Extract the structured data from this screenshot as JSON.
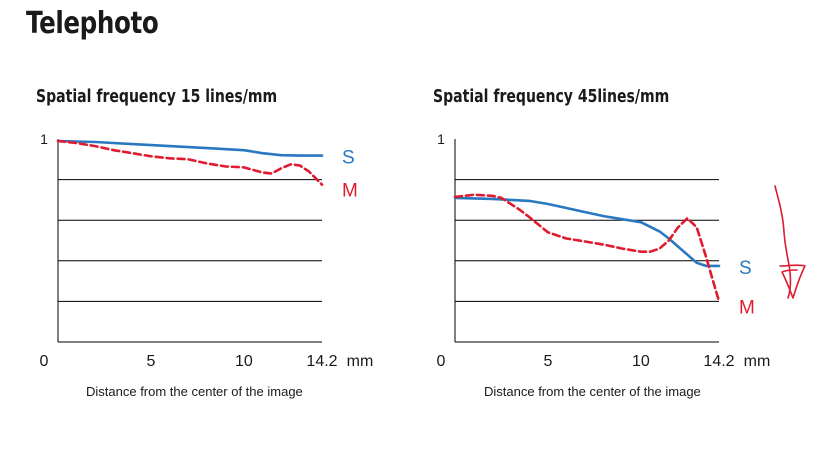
{
  "page_title": "Telephoto",
  "colors": {
    "S": "#2a78c0",
    "M": "#e01b2f",
    "annotation": "#e01b2f",
    "grid": "#000000",
    "text": "#1a1a1a"
  },
  "chart_data": [
    {
      "type": "line",
      "title": "Spatial frequency 15 lines/mm",
      "xlabel": "Distance from the center of the image",
      "x_unit": "mm",
      "xlim": [
        0,
        14.2
      ],
      "ylim": [
        0,
        1
      ],
      "x_ticks": [
        "0",
        "5",
        "10",
        "14.2"
      ],
      "y_ticks": [
        "1"
      ],
      "gridlines_y": [
        0.2,
        0.4,
        0.6,
        0.8
      ],
      "series": [
        {
          "name": "S",
          "style": "solid",
          "x": [
            0,
            2,
            4,
            6,
            8,
            10,
            11,
            12,
            13,
            14.2
          ],
          "y": [
            0.99,
            0.985,
            0.975,
            0.965,
            0.955,
            0.945,
            0.93,
            0.92,
            0.918,
            0.918
          ]
        },
        {
          "name": "M",
          "style": "dashed",
          "x": [
            0,
            1,
            2,
            3,
            4,
            5,
            6,
            7,
            8,
            9,
            10,
            11,
            11.5,
            12,
            12.5,
            13,
            13.5,
            14.2
          ],
          "y": [
            0.99,
            0.98,
            0.965,
            0.945,
            0.93,
            0.915,
            0.905,
            0.9,
            0.88,
            0.865,
            0.86,
            0.835,
            0.83,
            0.855,
            0.875,
            0.87,
            0.84,
            0.775
          ]
        }
      ]
    },
    {
      "type": "line",
      "title": "Spatial frequency 45lines/mm",
      "xlabel": "Distance from the center of the image",
      "x_unit": "mm",
      "xlim": [
        0,
        14.2
      ],
      "ylim": [
        0,
        1
      ],
      "x_ticks": [
        "0",
        "5",
        "10",
        "14.2"
      ],
      "y_ticks": [
        "1"
      ],
      "gridlines_y": [
        0.2,
        0.4,
        0.6,
        0.8
      ],
      "series": [
        {
          "name": "S",
          "style": "solid",
          "x": [
            0,
            2,
            3,
            4,
            5,
            6,
            7,
            8,
            9,
            10,
            11,
            11.5,
            12,
            12.5,
            13,
            13.5,
            14.2
          ],
          "y": [
            0.71,
            0.705,
            0.7,
            0.695,
            0.68,
            0.66,
            0.64,
            0.62,
            0.605,
            0.59,
            0.545,
            0.51,
            0.47,
            0.43,
            0.39,
            0.375,
            0.375
          ]
        },
        {
          "name": "M",
          "style": "dashed",
          "x": [
            0,
            1,
            2,
            2.5,
            3,
            3.5,
            4,
            5,
            6,
            7,
            8,
            9,
            10,
            10.5,
            11,
            11.5,
            12,
            12.5,
            13,
            13.5,
            14.2
          ],
          "y": [
            0.715,
            0.725,
            0.72,
            0.71,
            0.68,
            0.65,
            0.615,
            0.54,
            0.51,
            0.495,
            0.48,
            0.46,
            0.445,
            0.445,
            0.46,
            0.5,
            0.565,
            0.61,
            0.565,
            0.42,
            0.2
          ]
        }
      ]
    }
  ]
}
